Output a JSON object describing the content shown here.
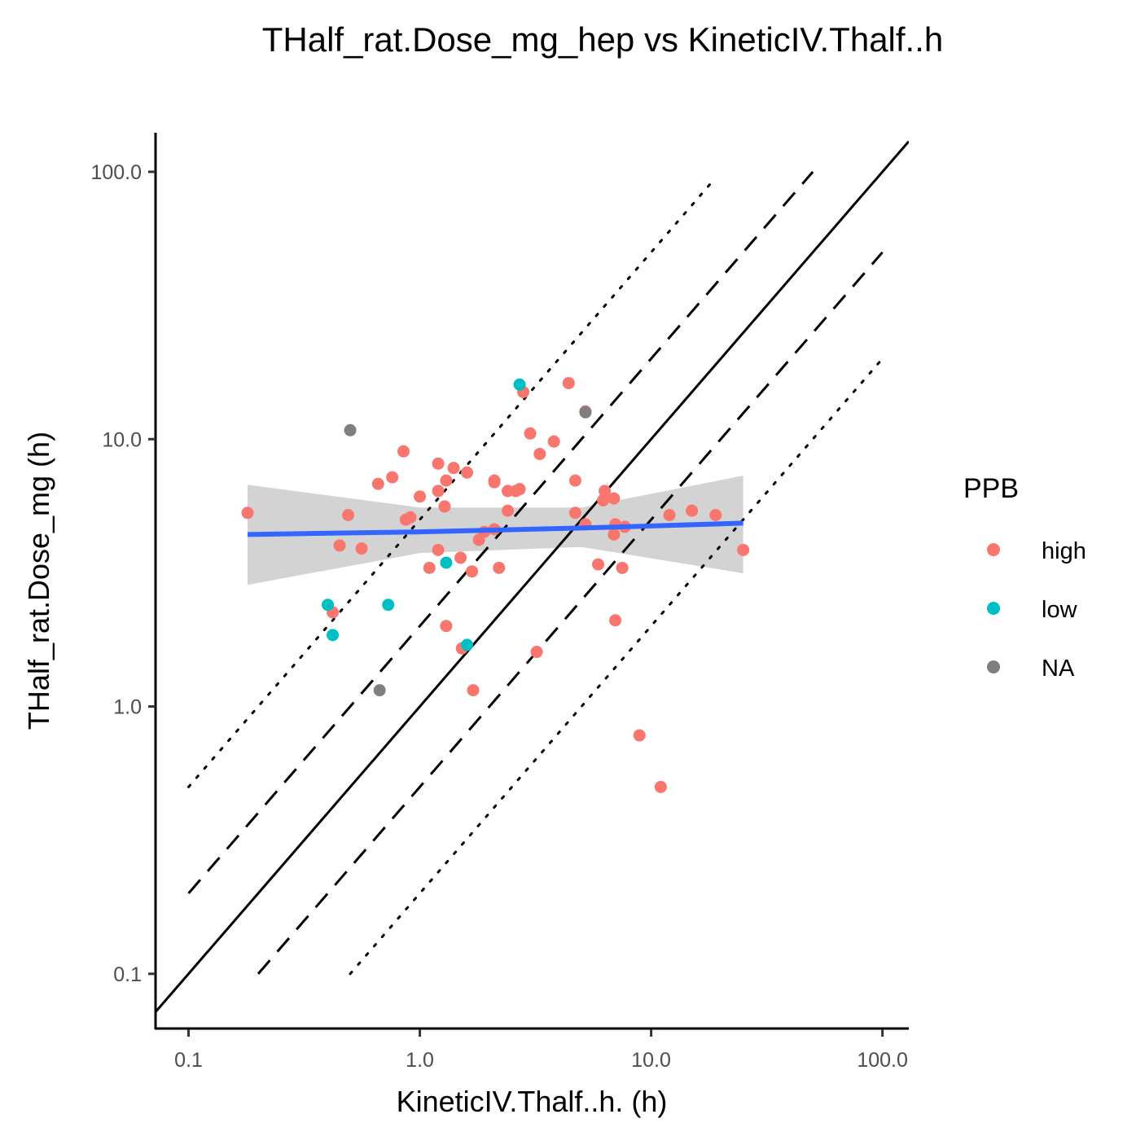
{
  "chart_data": {
    "type": "scatter",
    "title": "THalf_rat.Dose_mg_hep vs KineticIV.Thalf..h",
    "xlabel": "KineticIV.Thalf..h. (h)",
    "ylabel": "THalf_rat.Dose_mg (h)",
    "x_scale": "log10",
    "y_scale": "log10",
    "xlim": [
      0.072,
      130
    ],
    "ylim": [
      0.062,
      140
    ],
    "x_ticks": [
      0.1,
      1.0,
      10.0,
      100.0
    ],
    "x_tick_labels": [
      "0.1",
      "1.0",
      "10.0",
      "100.0"
    ],
    "y_ticks": [
      0.1,
      1.0,
      10.0,
      100.0
    ],
    "y_tick_labels": [
      "0.1",
      "1.0",
      "10.0",
      "100.0"
    ],
    "grid": false,
    "legend": {
      "title": "PPB",
      "placement": "right",
      "entries": [
        {
          "label": "high",
          "color": "#F8766D"
        },
        {
          "label": "low",
          "color": "#00BFC4"
        },
        {
          "label": "NA",
          "color": "#7F7F7F"
        }
      ]
    },
    "reference_lines": [
      {
        "kind": "identity",
        "style": "solid",
        "factor": 1,
        "x_range": [
          0.072,
          130
        ]
      },
      {
        "kind": "2-fold upper",
        "style": "dashed",
        "factor": 2,
        "x_range": [
          0.1,
          50
        ]
      },
      {
        "kind": "2-fold lower",
        "style": "dashed",
        "factor": 0.5,
        "x_range": [
          0.2,
          100
        ]
      },
      {
        "kind": "5-fold upper",
        "style": "dotted",
        "factor": 5,
        "x_range": [
          0.1,
          18
        ]
      },
      {
        "kind": "5-fold lower",
        "style": "dotted",
        "factor": 0.2,
        "x_range": [
          0.5,
          100
        ]
      }
    ],
    "smooth": {
      "method": "lm",
      "color": "#3366FF",
      "band_color": "#D3D3D3",
      "x": [
        0.18,
        1.0,
        5.0,
        25.0
      ],
      "y": [
        4.4,
        4.5,
        4.65,
        4.85
      ],
      "ci_lower": [
        2.85,
        3.75,
        3.95,
        3.15
      ],
      "ci_upper": [
        6.75,
        5.55,
        5.55,
        7.3
      ]
    },
    "series": [
      {
        "name": "high",
        "color": "#F8766D",
        "points": [
          [
            0.18,
            5.3
          ],
          [
            0.42,
            2.25
          ],
          [
            0.45,
            4.0
          ],
          [
            0.49,
            5.2
          ],
          [
            0.56,
            3.9
          ],
          [
            0.66,
            6.8
          ],
          [
            0.76,
            7.2
          ],
          [
            0.85,
            9.0
          ],
          [
            0.87,
            5.0
          ],
          [
            0.91,
            5.1
          ],
          [
            1.0,
            6.1
          ],
          [
            1.1,
            3.3
          ],
          [
            1.2,
            3.85
          ],
          [
            1.2,
            8.1
          ],
          [
            1.2,
            6.4
          ],
          [
            1.28,
            5.6
          ],
          [
            1.3,
            7.0
          ],
          [
            1.3,
            2.0
          ],
          [
            1.4,
            7.8
          ],
          [
            1.5,
            3.6
          ],
          [
            1.52,
            1.65
          ],
          [
            1.6,
            7.5
          ],
          [
            1.68,
            3.2
          ],
          [
            1.7,
            1.15
          ],
          [
            1.8,
            4.2
          ],
          [
            1.9,
            4.5
          ],
          [
            2.1,
            7.0
          ],
          [
            2.1,
            6.9
          ],
          [
            2.1,
            4.6
          ],
          [
            2.2,
            3.3
          ],
          [
            2.4,
            5.4
          ],
          [
            2.4,
            6.4
          ],
          [
            2.6,
            6.4
          ],
          [
            2.7,
            6.5
          ],
          [
            2.8,
            15.0
          ],
          [
            3.0,
            10.5
          ],
          [
            3.2,
            1.6
          ],
          [
            3.3,
            8.8
          ],
          [
            3.8,
            9.8
          ],
          [
            4.4,
            16.2
          ],
          [
            4.7,
            7.0
          ],
          [
            4.7,
            5.3
          ],
          [
            5.2,
            12.7
          ],
          [
            5.2,
            4.8
          ],
          [
            5.9,
            3.4
          ],
          [
            6.2,
            5.9
          ],
          [
            6.3,
            6.4
          ],
          [
            6.9,
            6.0
          ],
          [
            6.9,
            4.4
          ],
          [
            7.0,
            4.8
          ],
          [
            7.0,
            2.1
          ],
          [
            7.5,
            3.3
          ],
          [
            7.7,
            4.7
          ],
          [
            8.9,
            0.78
          ],
          [
            11.0,
            0.5
          ],
          [
            12.0,
            5.2
          ],
          [
            15.0,
            5.4
          ],
          [
            19.0,
            5.2
          ],
          [
            25.0,
            3.85
          ]
        ]
      },
      {
        "name": "low",
        "color": "#00BFC4",
        "points": [
          [
            0.4,
            2.4
          ],
          [
            0.42,
            1.85
          ],
          [
            0.73,
            2.4
          ],
          [
            1.3,
            3.45
          ],
          [
            1.6,
            1.7
          ],
          [
            2.7,
            16.0
          ]
        ]
      },
      {
        "name": "NA",
        "color": "#7F7F7F",
        "points": [
          [
            0.5,
            10.8
          ],
          [
            0.67,
            1.15
          ],
          [
            5.2,
            12.6
          ]
        ]
      }
    ]
  }
}
